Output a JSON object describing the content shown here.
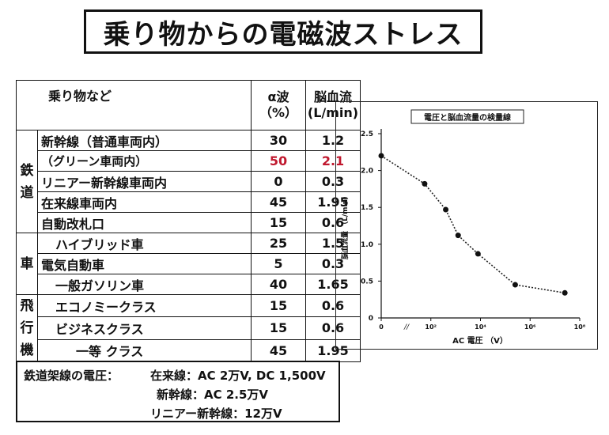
{
  "title": "乗り物からの電磁波ストレス",
  "table": {
    "header": {
      "item": "乗り物など",
      "alpha_1": "α波",
      "alpha_2": "（%）",
      "flow_1": "脳血流",
      "flow_2": "(L/min)"
    },
    "categories": {
      "rail": [
        "鉄",
        "道"
      ],
      "car": [
        "車"
      ],
      "plane": [
        "飛",
        "行",
        "機"
      ]
    },
    "rows": [
      {
        "item": "新幹線（普通車両内）",
        "alpha": "30",
        "flow": "1.2"
      },
      {
        "item": "（グリーン車両内）",
        "alpha": "50",
        "flow": "2.1"
      },
      {
        "item": "リニアー新幹線車両内",
        "alpha": "0",
        "flow": "0.3"
      },
      {
        "item": "在来線車両内",
        "alpha": "45",
        "flow": "1.95"
      },
      {
        "item": "自動改札口",
        "alpha": "15",
        "flow": "0.6"
      },
      {
        "item": "ハイブリッド車",
        "alpha": "25",
        "flow": "1.5"
      },
      {
        "item": "電気自動車",
        "alpha": "5",
        "flow": "0.3"
      },
      {
        "item": "一般ガソリン車",
        "alpha": "40",
        "flow": "1.65"
      },
      {
        "item": "エコノミークラス",
        "alpha": "15",
        "flow": "0.6"
      },
      {
        "item": "ビジネスクラス",
        "alpha": "15",
        "flow": "0.6"
      },
      {
        "item": "一等 クラス",
        "alpha": "45",
        "flow": "1.95"
      }
    ],
    "highlight_color": "#c0182e"
  },
  "chart_data": {
    "type": "line",
    "title": "電圧と脳血流量の検量線",
    "xlabel": "AC 電圧 （V）",
    "ylabel": "脳血流量 （L/min）",
    "x_ticks": [
      "0",
      "10²",
      "10⁴",
      "10⁶",
      "10⁸"
    ],
    "y_ticks": [
      "0",
      "0.5",
      "1.0",
      "1.5",
      "2.0",
      "2.5"
    ],
    "ylim": [
      0,
      2.5
    ],
    "x_scale": "log10 (10^0 drawn as 0)",
    "xlim_log10": [
      0,
      8
    ],
    "series": [
      {
        "x_log10": [
          0,
          1.75,
          2.6,
          3.1,
          3.9,
          5.4,
          7.4
        ],
        "y": [
          2.2,
          1.82,
          1.47,
          1.12,
          0.87,
          0.45,
          0.34
        ]
      }
    ]
  },
  "notes": {
    "line1": "鉄道架線の電圧：",
    "line1b": "在来線：AC 2万V, DC 1,500V",
    "line2": "新幹線：AC 2.5万V",
    "line3": "リニアー新幹線：12万V"
  }
}
